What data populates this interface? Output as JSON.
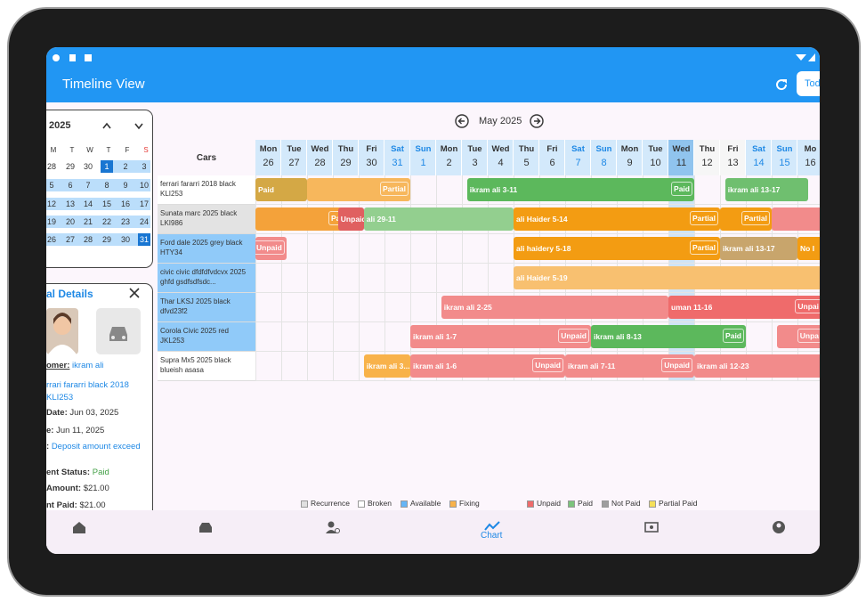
{
  "app_bar": {
    "title": "Timeline View",
    "today_button": "Today"
  },
  "calendar": {
    "year": "2025",
    "weekdays": [
      "M",
      "T",
      "W",
      "T",
      "F",
      "S"
    ],
    "weeks": [
      [
        "28",
        "29",
        "30",
        "1",
        "2",
        "3"
      ],
      [
        "5",
        "6",
        "7",
        "8",
        "9",
        "10"
      ],
      [
        "12",
        "13",
        "14",
        "15",
        "16",
        "17"
      ],
      [
        "19",
        "20",
        "21",
        "22",
        "23",
        "24"
      ],
      [
        "26",
        "27",
        "28",
        "29",
        "30",
        "31"
      ]
    ]
  },
  "details": {
    "title": "al Details",
    "lines": [
      {
        "label": "omer:",
        "value": "ikram ali",
        "color": "#1e88e5"
      },
      {
        "value": "rrari fararri black 2018 KLI253",
        "color": "#1e88e5"
      },
      {
        "label": "Date:",
        "value": "Jun 03, 2025",
        "color": "#333333"
      },
      {
        "label": "e:",
        "value": "Jun 11, 2025",
        "color": "#333333"
      },
      {
        "label": ":",
        "value": "Deposit amount exceed",
        "color": "#1e88e5"
      },
      {
        "label": "ent Status:",
        "value": "Paid",
        "color": "#43a047"
      },
      {
        "label": "Amount:",
        "value": "$21.00",
        "color": "#333333"
      },
      {
        "label": "nt Paid:",
        "value": "$21.00",
        "color": "#333333"
      }
    ]
  },
  "timeline": {
    "month": "May 2025",
    "cars_header": "Cars",
    "days": [
      {
        "dow": "Mon",
        "day": "26"
      },
      {
        "dow": "Tue",
        "day": "27"
      },
      {
        "dow": "Wed",
        "day": "28"
      },
      {
        "dow": "Thu",
        "day": "29"
      },
      {
        "dow": "Fri",
        "day": "30"
      },
      {
        "dow": "Sat",
        "day": "31"
      },
      {
        "dow": "Sun",
        "day": "1"
      },
      {
        "dow": "Mon",
        "day": "2"
      },
      {
        "dow": "Tue",
        "day": "3"
      },
      {
        "dow": "Wed",
        "day": "4"
      },
      {
        "dow": "Thu",
        "day": "5"
      },
      {
        "dow": "Fri",
        "day": "6"
      },
      {
        "dow": "Sat",
        "day": "7"
      },
      {
        "dow": "Sun",
        "day": "8"
      },
      {
        "dow": "Mon",
        "day": "9"
      },
      {
        "dow": "Tue",
        "day": "10"
      },
      {
        "dow": "Wed",
        "day": "11"
      },
      {
        "dow": "Thu",
        "day": "12"
      },
      {
        "dow": "Fri",
        "day": "13"
      },
      {
        "dow": "Sat",
        "day": "14"
      },
      {
        "dow": "Sun",
        "day": "15"
      },
      {
        "dow": "Mo",
        "day": "16"
      }
    ],
    "cars": [
      {
        "name": "ferrari fararri 2018 black KLI253",
        "color": "#ffffff"
      },
      {
        "name": "Sunata marc 2025 black LKI986",
        "color": "#e3e3e3"
      },
      {
        "name": "Ford dale 2025 grey black HTY34",
        "color": "#90caf9"
      },
      {
        "name": "civic civic dfdfdfvdcvx 2025 ghfd gsdfsdfsdc...",
        "color": "#90caf9"
      },
      {
        "name": "Thar LKSJ 2025 black dfvd23f2",
        "color": "#90caf9"
      },
      {
        "name": "Corola Civic 2025 red JKL253",
        "color": "#90caf9"
      },
      {
        "name": "Supra Mx5 2025 black blueish asasa",
        "color": "#ffffff"
      }
    ],
    "bars": [
      {
        "label": "Paid",
        "color": "#d4a845"
      },
      {
        "tag": "Partial",
        "color": "#f7b75c"
      },
      {
        "label": "ikram ali 3-11",
        "tag": "Paid",
        "color": "#5cb85c"
      },
      {
        "label": "ikram ali 13-17",
        "color": "#6fbf6f"
      },
      {
        "tag": "Partial",
        "color": "#f4a23a"
      },
      {
        "label": "Unpaid",
        "color": "#e06060"
      },
      {
        "label": "ali 29-11",
        "color": "#93cf8f"
      },
      {
        "label": "ali Haider 5-14",
        "tag": "Partial",
        "color": "#f39c12"
      },
      {
        "tag": "Partial",
        "color": "#f39c12"
      },
      {
        "color": "#f28b8b"
      },
      {
        "tag": "Unpaid",
        "color": "#f28b8b"
      },
      {
        "label": "ali haidery 5-18",
        "tag": "Partial",
        "color": "#f39c12"
      },
      {
        "label": "ikram ali 13-17",
        "color": "#c8a56c"
      },
      {
        "label": "No I",
        "color": "#f39c12"
      },
      {
        "label": "ali Haider 5-19",
        "color": "#f8c070"
      },
      {
        "label": "ikram ali 2-25",
        "color": "#f28b8b"
      },
      {
        "label": "uman 11-16",
        "tag": "Unpai",
        "color": "#ef6b6b"
      },
      {
        "label": "ikram ali 1-7",
        "tag": "Unpaid",
        "color": "#f28b8b"
      },
      {
        "label": "ikram ali 8-13",
        "tag": "Paid",
        "color": "#5cb85c"
      },
      {
        "tag": "Unpa",
        "color": "#f28b8b"
      },
      {
        "label": "ikram ali 3...",
        "color": "#f8b24a"
      },
      {
        "label": "ikram ali 1-6",
        "tag": "Unpaid",
        "color": "#f28b8b"
      },
      {
        "label": "ikram ali 7-11",
        "tag": "Unpaid",
        "color": "#f28b8b"
      },
      {
        "label": "ikram ali 12-23",
        "color": "#f28b8b"
      }
    ]
  },
  "legend": [
    {
      "name": "Recurrence",
      "color": "#e0e0e0"
    },
    {
      "name": "Broken",
      "color": "#ffffff"
    },
    {
      "name": "Available",
      "color": "#64b5f6"
    },
    {
      "name": "Fixing",
      "color": "#f8b24a"
    },
    {
      "name": "Unpaid",
      "color": "#ef6b6b"
    },
    {
      "name": "Paid",
      "color": "#7bc47b"
    },
    {
      "name": "Not Paid",
      "color": "#9e9e9e"
    },
    {
      "name": "Partial Paid",
      "color": "#f5e05a"
    }
  ],
  "nav": {
    "active": "Chart"
  }
}
